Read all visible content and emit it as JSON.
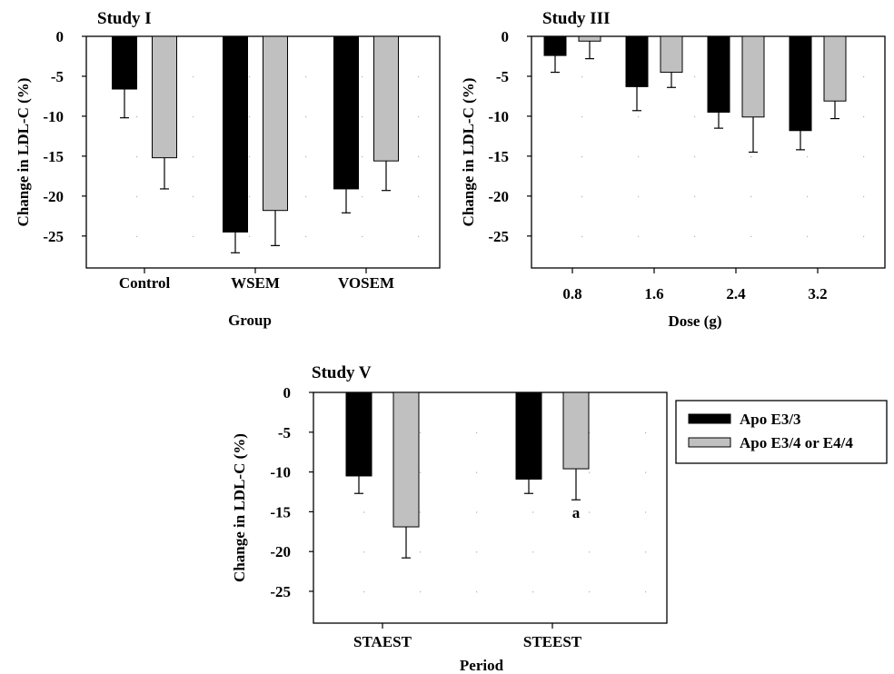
{
  "colors": {
    "apo_e33": "#000000",
    "apo_e34_e44": "#c0c0c0",
    "axis": "#000000",
    "grid": "#b0b0b0"
  },
  "legend": {
    "items": [
      {
        "label": "Apo E3/3",
        "color": "#000000"
      },
      {
        "label": "Apo E3/4 or E4/4",
        "color": "#c0c0c0"
      }
    ]
  },
  "chart_data": [
    {
      "type": "bar",
      "title": "Study I",
      "xlabel": "Group",
      "ylabel": "Change in LDL-C (%)",
      "ylim": [
        -29,
        0
      ],
      "yticks": [
        "0",
        "-5",
        "-10",
        "-15",
        "-20",
        "-25"
      ],
      "categories": [
        "Control",
        "WSEM",
        "VOSEM"
      ],
      "series": [
        {
          "name": "Apo E3/3",
          "values": [
            -6.6,
            -24.5,
            -19.1
          ],
          "errors": [
            3.6,
            2.6,
            3.0
          ]
        },
        {
          "name": "Apo E3/4 or E4/4",
          "values": [
            -15.2,
            -21.8,
            -15.6
          ],
          "errors": [
            3.9,
            4.4,
            3.7
          ]
        }
      ],
      "grid": "dotted",
      "annotations": []
    },
    {
      "type": "bar",
      "title": "Study III",
      "xlabel": "Dose (g)",
      "ylabel": "Change in LDL-C (%)",
      "ylim": [
        -29,
        0
      ],
      "yticks": [
        "0",
        "-5",
        "-10",
        "-15",
        "-20",
        "-25"
      ],
      "categories": [
        "0.8",
        "1.6",
        "2.4",
        "3.2"
      ],
      "series": [
        {
          "name": "Apo E3/3",
          "values": [
            -2.4,
            -6.3,
            -9.5,
            -11.8
          ],
          "errors": [
            2.1,
            3.0,
            2.0,
            2.4
          ]
        },
        {
          "name": "Apo E3/4 or E4/4",
          "values": [
            -0.6,
            -4.5,
            -10.1,
            -8.1
          ],
          "errors": [
            2.2,
            1.9,
            4.4,
            2.2
          ]
        }
      ],
      "grid": "dotted",
      "annotations": []
    },
    {
      "type": "bar",
      "title": "Study V",
      "xlabel": "Period",
      "ylabel": "Change in LDL-C (%)",
      "ylim": [
        -29,
        0
      ],
      "yticks": [
        "0",
        "-5",
        "-10",
        "-15",
        "-20",
        "-25"
      ],
      "categories": [
        "STAEST",
        "STEEST"
      ],
      "series": [
        {
          "name": "Apo E3/3",
          "values": [
            -10.5,
            -10.9
          ],
          "errors": [
            2.2,
            1.8
          ]
        },
        {
          "name": "Apo E3/4 or E4/4",
          "values": [
            -16.9,
            -9.6
          ],
          "errors": [
            3.9,
            3.9
          ]
        }
      ],
      "grid": "dotted",
      "annotations": [
        {
          "text": "a",
          "category": 1,
          "series": 1
        }
      ]
    }
  ]
}
